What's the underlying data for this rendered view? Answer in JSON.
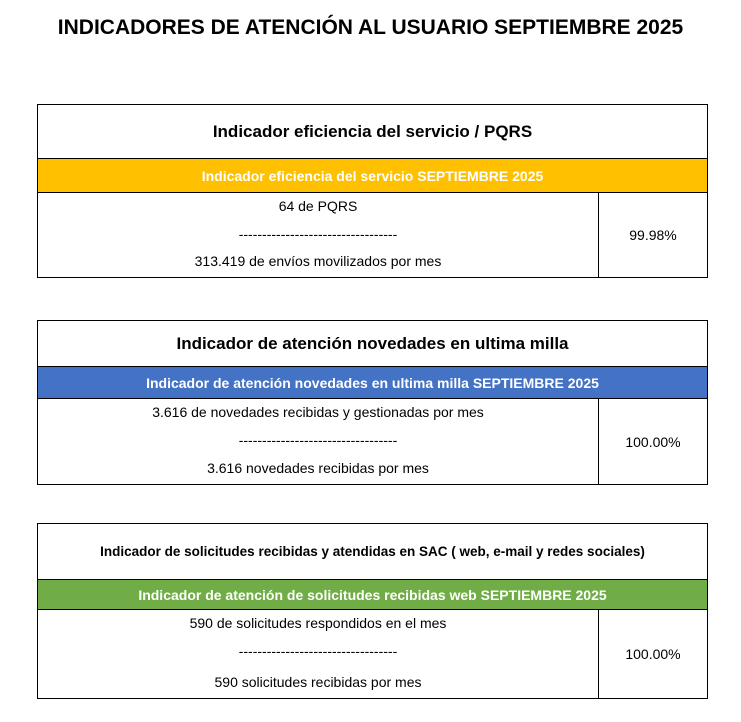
{
  "header": {
    "title": "INDICADORES DE ATENCIÓN AL USUARIO SEPTIEMBRE 2025"
  },
  "blocks": [
    {
      "title": "Indicador eficiencia del servicio / PQRS",
      "subheader": "Indicador eficiencia del servicio SEPTIEMBRE 2025",
      "numerator": "64 de PQRS",
      "separator": "----------------------------------",
      "denominator": "313.419 de envíos movilizados por mes",
      "result": "99.98%"
    },
    {
      "title": "Indicador de atención novedades en ultima milla",
      "subheader": "Indicador de atención novedades en ultima milla SEPTIEMBRE  2025",
      "numerator": "3.616 de novedades recibidas y gestionadas por mes",
      "separator": "----------------------------------",
      "denominator": "3.616  novedades recibidas por mes",
      "result": "100.00%"
    },
    {
      "title": "Indicador de solicitudes recibidas y atendidas en SAC ( web, e-mail y redes sociales)",
      "subheader": "Indicador de atención de solicitudes recibidas web SEPTIEMBRE  2025",
      "numerator": "590 de solicitudes respondidos en el mes",
      "separator": "----------------------------------",
      "denominator": "590 solicitudes recibidas por mes",
      "result": "100.00%"
    }
  ]
}
